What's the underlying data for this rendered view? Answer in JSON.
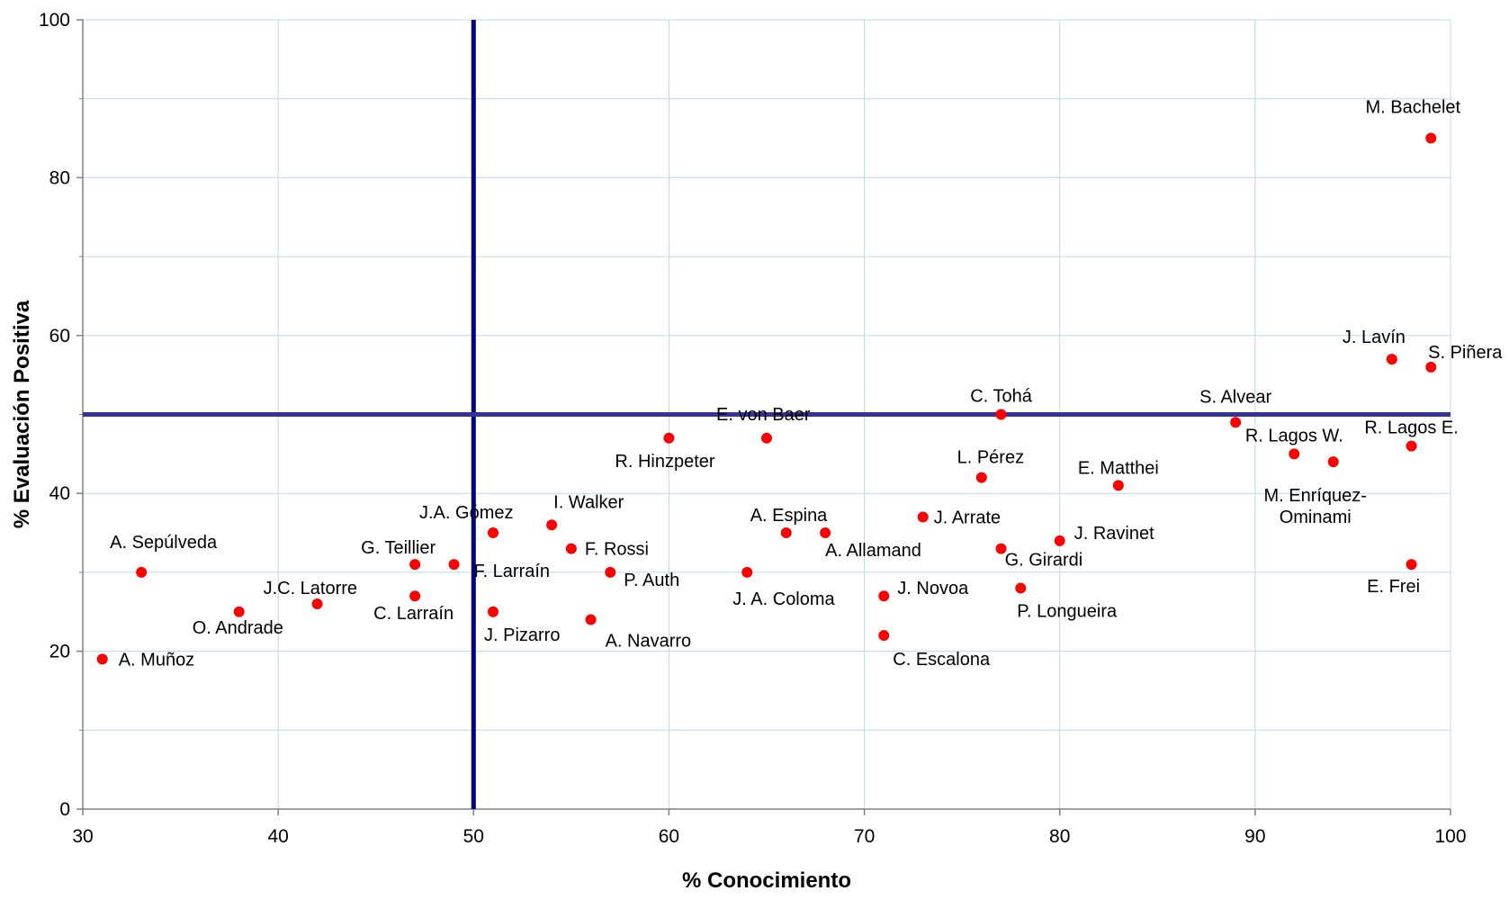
{
  "chart_data": {
    "type": "scatter",
    "title": "",
    "xlabel": "% Conocimiento",
    "ylabel": "% Evaluación Positiva",
    "xlim": [
      30,
      100
    ],
    "ylim": [
      0,
      100
    ],
    "xticks": [
      30,
      40,
      50,
      60,
      70,
      80,
      90,
      100
    ],
    "yticks": [
      0,
      20,
      40,
      60,
      80,
      100
    ],
    "x_gridlines": [
      30,
      40,
      50,
      60,
      70,
      80,
      90,
      100
    ],
    "y_gridlines": [
      0,
      10,
      20,
      30,
      40,
      50,
      60,
      70,
      80,
      90,
      100
    ],
    "grid": true,
    "legend": "none",
    "reference_lines": {
      "x": 50,
      "y": 50
    },
    "colors": {
      "marker": "#ff0000",
      "grid": "#bcd8f0",
      "reference_line_x": "#000080",
      "reference_line_y": "#333399",
      "axis": "#808080"
    },
    "points": [
      {
        "label": "M. Bachelet",
        "x": 99,
        "y": 85
      },
      {
        "label": "J. Lavín",
        "x": 97,
        "y": 57
      },
      {
        "label": "S. Piñera",
        "x": 99,
        "y": 56
      },
      {
        "label": "S. Alvear",
        "x": 89,
        "y": 49
      },
      {
        "label": "R. Lagos W.",
        "x": 92,
        "y": 45
      },
      {
        "label": "R. Lagos E.",
        "x": 98,
        "y": 46
      },
      {
        "label": "M. Enríquez-\nOminami",
        "x": 94,
        "y": 44
      },
      {
        "label": "E. Frei",
        "x": 98,
        "y": 31
      },
      {
        "label": "C. Tohá",
        "x": 77,
        "y": 50
      },
      {
        "label": "L. Pérez",
        "x": 76,
        "y": 42
      },
      {
        "label": "E. Matthei",
        "x": 83,
        "y": 41
      },
      {
        "label": "J. Arrate",
        "x": 73,
        "y": 37
      },
      {
        "label": "J. Ravinet",
        "x": 80,
        "y": 34
      },
      {
        "label": "G. Girardi",
        "x": 77,
        "y": 33
      },
      {
        "label": "P. Longueira",
        "x": 78,
        "y": 28
      },
      {
        "label": "J. Novoa",
        "x": 71,
        "y": 27
      },
      {
        "label": "C. Escalona",
        "x": 71,
        "y": 22
      },
      {
        "label": "E. von Baer",
        "x": 65,
        "y": 47
      },
      {
        "label": "R. Hinzpeter",
        "x": 60,
        "y": 47
      },
      {
        "label": "A. Espina",
        "x": 66,
        "y": 35
      },
      {
        "label": "A. Allamand",
        "x": 68,
        "y": 35
      },
      {
        "label": "J. A. Coloma",
        "x": 64,
        "y": 30
      },
      {
        "label": "I. Walker",
        "x": 54,
        "y": 36
      },
      {
        "label": "F. Rossi",
        "x": 55,
        "y": 33
      },
      {
        "label": "P. Auth",
        "x": 57,
        "y": 30
      },
      {
        "label": "A. Navarro",
        "x": 56,
        "y": 24
      },
      {
        "label": "J.A. Gómez",
        "x": 51,
        "y": 35
      },
      {
        "label": "J. Pizarro",
        "x": 51,
        "y": 25
      },
      {
        "label": "F. Larraín",
        "x": 49,
        "y": 31
      },
      {
        "label": "G. Teillier",
        "x": 47,
        "y": 31
      },
      {
        "label": "C. Larraín",
        "x": 47,
        "y": 27
      },
      {
        "label": "J.C. Latorre",
        "x": 42,
        "y": 26
      },
      {
        "label": "O. Andrade",
        "x": 38,
        "y": 25
      },
      {
        "label": "A. Sepúlveda",
        "x": 33,
        "y": 30
      },
      {
        "label": "A. Muñoz",
        "x": 31,
        "y": 19
      }
    ]
  }
}
